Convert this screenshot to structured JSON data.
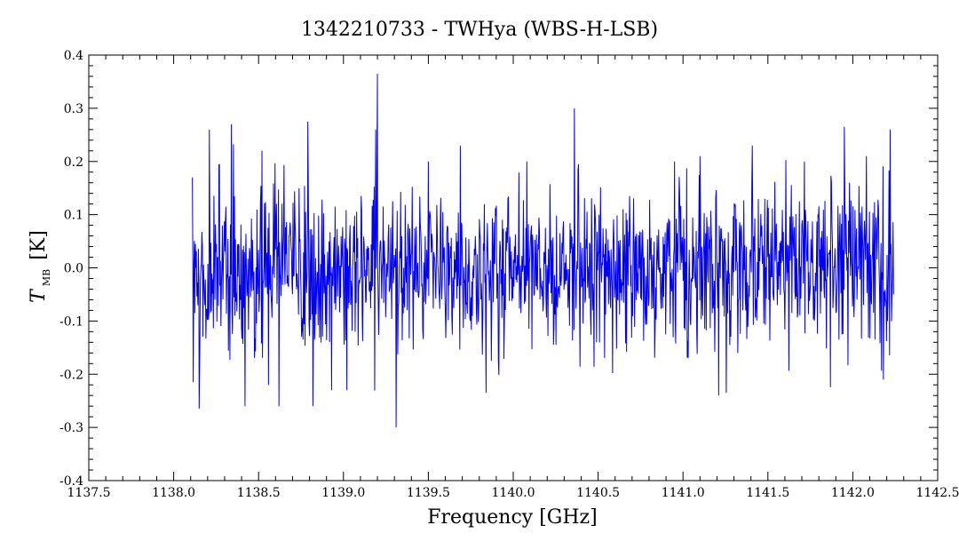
{
  "chart_data": {
    "type": "line",
    "title": "1342210733 - TWHya (WBS-H-LSB)",
    "xlabel": "Frequency [GHz]",
    "ylabel": {
      "symbol": "T",
      "subscript": "MB",
      "unit": "[K]"
    },
    "xlim": [
      1137.5,
      1142.5
    ],
    "ylim": [
      -0.4,
      0.4
    ],
    "x_ticks": [
      "1137.5",
      "1138.0",
      "1138.5",
      "1139.0",
      "1139.5",
      "1140.0",
      "1140.5",
      "1141.0",
      "1141.5",
      "1142.0",
      "1142.5"
    ],
    "y_ticks": [
      "0.4",
      "0.3",
      "0.2",
      "0.1",
      "0.0",
      "-0.1",
      "-0.2",
      "-0.3",
      "-0.4"
    ],
    "grid": false,
    "series": [
      {
        "color": "#0000ff",
        "x_range": [
          1138.11,
          1142.24
        ],
        "noise_rms": 0.09,
        "points": [
          [
            1138.11,
            0.17
          ],
          [
            1138.115,
            -0.215
          ],
          [
            1138.13,
            0.0
          ],
          [
            1138.15,
            -0.265
          ],
          [
            1138.21,
            0.26
          ],
          [
            1138.34,
            0.27
          ],
          [
            1138.42,
            -0.26
          ],
          [
            1138.52,
            0.22
          ],
          [
            1138.62,
            -0.26
          ],
          [
            1138.79,
            0.275
          ],
          [
            1138.82,
            -0.26
          ],
          [
            1138.93,
            -0.23
          ],
          [
            1139.02,
            -0.23
          ],
          [
            1139.19,
            0.26
          ],
          [
            1139.2,
            0.365
          ],
          [
            1139.31,
            -0.3
          ],
          [
            1139.5,
            0.2
          ],
          [
            1139.84,
            -0.235
          ],
          [
            1140.08,
            0.2
          ],
          [
            1140.36,
            0.3
          ],
          [
            1140.95,
            0.2
          ],
          [
            1141.1,
            0.21
          ],
          [
            1141.21,
            -0.24
          ],
          [
            1141.95,
            0.265
          ],
          [
            1142.08,
            0.21
          ],
          [
            1142.18,
            -0.21
          ],
          [
            1142.22,
            0.26
          ],
          [
            1142.24,
            -0.05
          ]
        ]
      }
    ]
  }
}
